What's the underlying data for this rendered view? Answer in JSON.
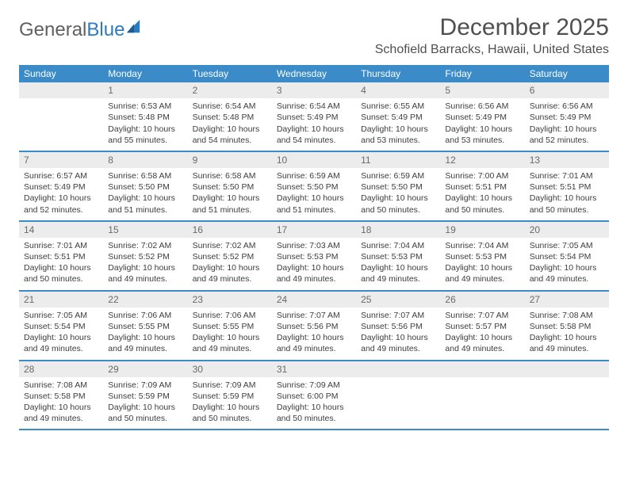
{
  "logo": {
    "text1": "General",
    "text2": "Blue"
  },
  "title": "December 2025",
  "location": "Schofield Barracks, Hawaii, United States",
  "colors": {
    "header_bg": "#3b8bc8",
    "header_text": "#ffffff",
    "daynum_bg": "#ececec",
    "daynum_text": "#6a6a6a",
    "body_text": "#3d3d3d",
    "rule": "#3b8bc8",
    "page_bg": "#ffffff"
  },
  "day_labels": [
    "Sunday",
    "Monday",
    "Tuesday",
    "Wednesday",
    "Thursday",
    "Friday",
    "Saturday"
  ],
  "weeks": [
    [
      {
        "n": "",
        "sr": "",
        "ss": "",
        "dl": ""
      },
      {
        "n": "1",
        "sr": "Sunrise: 6:53 AM",
        "ss": "Sunset: 5:48 PM",
        "dl": "Daylight: 10 hours and 55 minutes."
      },
      {
        "n": "2",
        "sr": "Sunrise: 6:54 AM",
        "ss": "Sunset: 5:48 PM",
        "dl": "Daylight: 10 hours and 54 minutes."
      },
      {
        "n": "3",
        "sr": "Sunrise: 6:54 AM",
        "ss": "Sunset: 5:49 PM",
        "dl": "Daylight: 10 hours and 54 minutes."
      },
      {
        "n": "4",
        "sr": "Sunrise: 6:55 AM",
        "ss": "Sunset: 5:49 PM",
        "dl": "Daylight: 10 hours and 53 minutes."
      },
      {
        "n": "5",
        "sr": "Sunrise: 6:56 AM",
        "ss": "Sunset: 5:49 PM",
        "dl": "Daylight: 10 hours and 53 minutes."
      },
      {
        "n": "6",
        "sr": "Sunrise: 6:56 AM",
        "ss": "Sunset: 5:49 PM",
        "dl": "Daylight: 10 hours and 52 minutes."
      }
    ],
    [
      {
        "n": "7",
        "sr": "Sunrise: 6:57 AM",
        "ss": "Sunset: 5:49 PM",
        "dl": "Daylight: 10 hours and 52 minutes."
      },
      {
        "n": "8",
        "sr": "Sunrise: 6:58 AM",
        "ss": "Sunset: 5:50 PM",
        "dl": "Daylight: 10 hours and 51 minutes."
      },
      {
        "n": "9",
        "sr": "Sunrise: 6:58 AM",
        "ss": "Sunset: 5:50 PM",
        "dl": "Daylight: 10 hours and 51 minutes."
      },
      {
        "n": "10",
        "sr": "Sunrise: 6:59 AM",
        "ss": "Sunset: 5:50 PM",
        "dl": "Daylight: 10 hours and 51 minutes."
      },
      {
        "n": "11",
        "sr": "Sunrise: 6:59 AM",
        "ss": "Sunset: 5:50 PM",
        "dl": "Daylight: 10 hours and 50 minutes."
      },
      {
        "n": "12",
        "sr": "Sunrise: 7:00 AM",
        "ss": "Sunset: 5:51 PM",
        "dl": "Daylight: 10 hours and 50 minutes."
      },
      {
        "n": "13",
        "sr": "Sunrise: 7:01 AM",
        "ss": "Sunset: 5:51 PM",
        "dl": "Daylight: 10 hours and 50 minutes."
      }
    ],
    [
      {
        "n": "14",
        "sr": "Sunrise: 7:01 AM",
        "ss": "Sunset: 5:51 PM",
        "dl": "Daylight: 10 hours and 50 minutes."
      },
      {
        "n": "15",
        "sr": "Sunrise: 7:02 AM",
        "ss": "Sunset: 5:52 PM",
        "dl": "Daylight: 10 hours and 49 minutes."
      },
      {
        "n": "16",
        "sr": "Sunrise: 7:02 AM",
        "ss": "Sunset: 5:52 PM",
        "dl": "Daylight: 10 hours and 49 minutes."
      },
      {
        "n": "17",
        "sr": "Sunrise: 7:03 AM",
        "ss": "Sunset: 5:53 PM",
        "dl": "Daylight: 10 hours and 49 minutes."
      },
      {
        "n": "18",
        "sr": "Sunrise: 7:04 AM",
        "ss": "Sunset: 5:53 PM",
        "dl": "Daylight: 10 hours and 49 minutes."
      },
      {
        "n": "19",
        "sr": "Sunrise: 7:04 AM",
        "ss": "Sunset: 5:53 PM",
        "dl": "Daylight: 10 hours and 49 minutes."
      },
      {
        "n": "20",
        "sr": "Sunrise: 7:05 AM",
        "ss": "Sunset: 5:54 PM",
        "dl": "Daylight: 10 hours and 49 minutes."
      }
    ],
    [
      {
        "n": "21",
        "sr": "Sunrise: 7:05 AM",
        "ss": "Sunset: 5:54 PM",
        "dl": "Daylight: 10 hours and 49 minutes."
      },
      {
        "n": "22",
        "sr": "Sunrise: 7:06 AM",
        "ss": "Sunset: 5:55 PM",
        "dl": "Daylight: 10 hours and 49 minutes."
      },
      {
        "n": "23",
        "sr": "Sunrise: 7:06 AM",
        "ss": "Sunset: 5:55 PM",
        "dl": "Daylight: 10 hours and 49 minutes."
      },
      {
        "n": "24",
        "sr": "Sunrise: 7:07 AM",
        "ss": "Sunset: 5:56 PM",
        "dl": "Daylight: 10 hours and 49 minutes."
      },
      {
        "n": "25",
        "sr": "Sunrise: 7:07 AM",
        "ss": "Sunset: 5:56 PM",
        "dl": "Daylight: 10 hours and 49 minutes."
      },
      {
        "n": "26",
        "sr": "Sunrise: 7:07 AM",
        "ss": "Sunset: 5:57 PM",
        "dl": "Daylight: 10 hours and 49 minutes."
      },
      {
        "n": "27",
        "sr": "Sunrise: 7:08 AM",
        "ss": "Sunset: 5:58 PM",
        "dl": "Daylight: 10 hours and 49 minutes."
      }
    ],
    [
      {
        "n": "28",
        "sr": "Sunrise: 7:08 AM",
        "ss": "Sunset: 5:58 PM",
        "dl": "Daylight: 10 hours and 49 minutes."
      },
      {
        "n": "29",
        "sr": "Sunrise: 7:09 AM",
        "ss": "Sunset: 5:59 PM",
        "dl": "Daylight: 10 hours and 50 minutes."
      },
      {
        "n": "30",
        "sr": "Sunrise: 7:09 AM",
        "ss": "Sunset: 5:59 PM",
        "dl": "Daylight: 10 hours and 50 minutes."
      },
      {
        "n": "31",
        "sr": "Sunrise: 7:09 AM",
        "ss": "Sunset: 6:00 PM",
        "dl": "Daylight: 10 hours and 50 minutes."
      },
      {
        "n": "",
        "sr": "",
        "ss": "",
        "dl": ""
      },
      {
        "n": "",
        "sr": "",
        "ss": "",
        "dl": ""
      },
      {
        "n": "",
        "sr": "",
        "ss": "",
        "dl": ""
      }
    ]
  ]
}
